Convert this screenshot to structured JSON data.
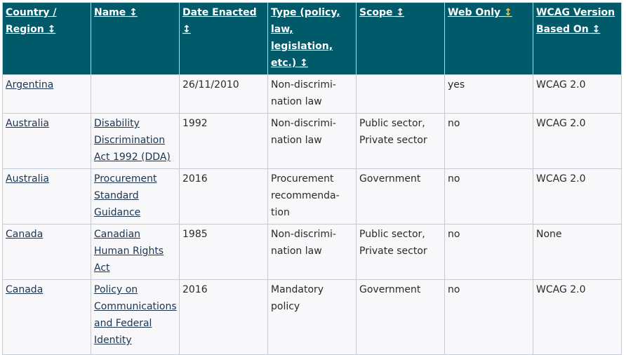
{
  "table": {
    "headers": [
      {
        "label": "Country / Region",
        "sort_icon": "↕"
      },
      {
        "label": "Name",
        "sort_icon": "↕"
      },
      {
        "label": "Date Enacted",
        "sort_icon": "↕"
      },
      {
        "label": "Type (policy, law, legislation, etc.)",
        "sort_icon": "↕"
      },
      {
        "label": "Scope",
        "sort_icon": "↕"
      },
      {
        "label": "Web Only",
        "sort_icon": "↕"
      },
      {
        "label": "WCAG Version Based On",
        "sort_icon": "↕"
      }
    ],
    "rows": [
      {
        "country": "Argentina",
        "name": "",
        "date": "26/11/2010",
        "type": "Non-discrimi­nation law",
        "scope": "",
        "web_only": "yes",
        "wcag": "WCAG 2.0"
      },
      {
        "country": "Australia",
        "name": "Disability Discrimination Act 1992 (DDA)",
        "date": "1992",
        "type": "Non-discrimi­nation law",
        "scope": "Public sector, Private sector",
        "web_only": "no",
        "wcag": "WCAG 2.0"
      },
      {
        "country": "Australia",
        "name": "Procurement Standard Guidance",
        "date": "2016",
        "type": "Procurement recommenda­tion",
        "scope": "Government",
        "web_only": "no",
        "wcag": "WCAG 2.0"
      },
      {
        "country": "Canada",
        "name": "Canadian Human Rights Act",
        "date": "1985",
        "type": "Non-discrimi­nation law",
        "scope": "Public sector, Private sector",
        "web_only": "no",
        "wcag": "None"
      },
      {
        "country": "Canada",
        "name": "Policy on Communications and Federal Identity",
        "date": "2016",
        "type": "Mandatory policy",
        "scope": "Government",
        "web_only": "no",
        "wcag": "WCAG 2.0"
      }
    ]
  },
  "colors": {
    "header_bg": "#005a6a",
    "sorted_arrow": "#e8c44a",
    "link": "#1b3550"
  }
}
